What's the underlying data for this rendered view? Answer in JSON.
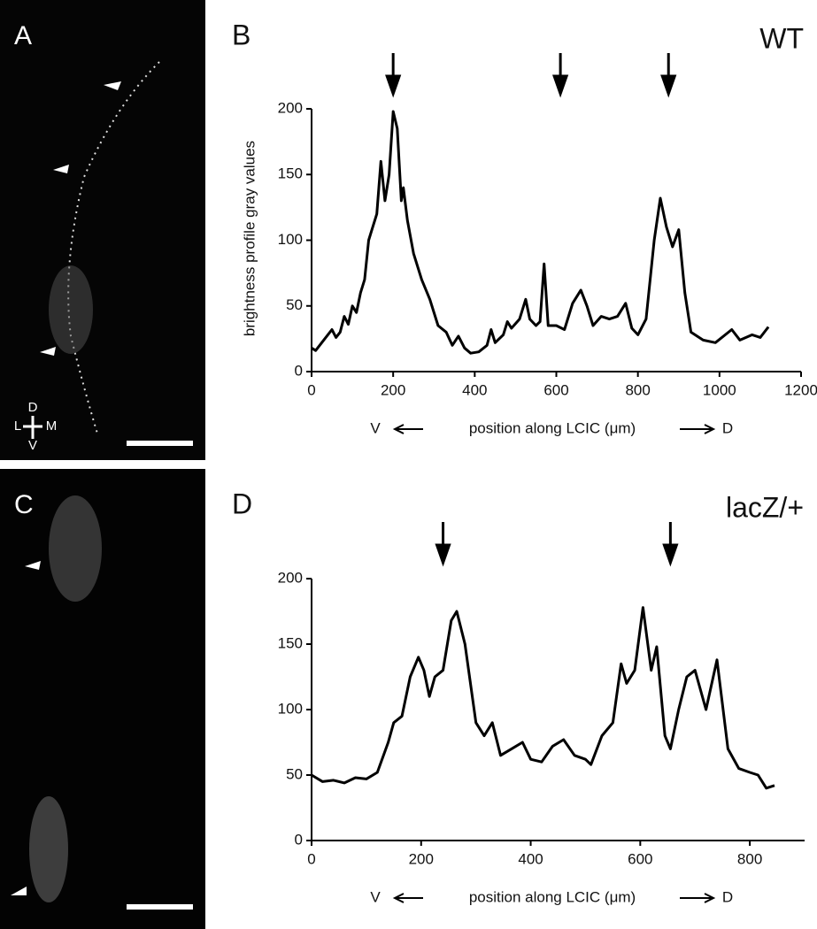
{
  "panels": [
    {
      "label": "A",
      "orientation": [
        "D",
        "L",
        "M",
        "V"
      ]
    },
    {
      "label": "C"
    }
  ],
  "chart_data": [
    {
      "type": "line",
      "panel": "B",
      "label": "WT",
      "y_label": "brightness profile gray values",
      "x_label": [
        "V",
        "position along LCIC (μm)",
        "D"
      ],
      "color": "#000000",
      "xlim": [
        0,
        1200
      ],
      "xticks": [
        0,
        200,
        400,
        600,
        800,
        1000,
        1200
      ],
      "ylim": [
        0,
        200
      ],
      "yticks": [
        0,
        50,
        100,
        150,
        200
      ],
      "arrow_x": [
        200,
        610,
        875
      ],
      "x": [
        0,
        10,
        25,
        40,
        50,
        60,
        70,
        80,
        90,
        100,
        110,
        120,
        130,
        140,
        150,
        160,
        170,
        180,
        190,
        200,
        210,
        220,
        225,
        235,
        250,
        270,
        290,
        310,
        330,
        345,
        360,
        375,
        390,
        410,
        430,
        440,
        450,
        470,
        480,
        490,
        510,
        525,
        535,
        550,
        560,
        570,
        580,
        600,
        620,
        640,
        660,
        675,
        690,
        710,
        730,
        750,
        770,
        785,
        800,
        820,
        840,
        855,
        870,
        885,
        900,
        915,
        930,
        960,
        990,
        1030,
        1050,
        1080,
        1100,
        1120
      ],
      "values": [
        18,
        16,
        22,
        28,
        32,
        26,
        30,
        42,
        36,
        50,
        45,
        60,
        70,
        100,
        110,
        120,
        160,
        130,
        150,
        198,
        185,
        130,
        140,
        115,
        90,
        70,
        55,
        35,
        30,
        20,
        27,
        18,
        14,
        15,
        20,
        32,
        22,
        28,
        38,
        33,
        40,
        55,
        40,
        35,
        38,
        82,
        35,
        35,
        32,
        52,
        62,
        50,
        35,
        42,
        40,
        42,
        52,
        33,
        28,
        40,
        100,
        132,
        110,
        95,
        108,
        60,
        30,
        24,
        22,
        32,
        24,
        28,
        26,
        34
      ]
    },
    {
      "type": "line",
      "panel": "D",
      "label": "lacZ/+",
      "x_label": [
        "V",
        "position along LCIC (μm)",
        "D"
      ],
      "color": "#000000",
      "xlim": [
        0,
        900
      ],
      "xticks": [
        0,
        200,
        400,
        600,
        800
      ],
      "ylim": [
        0,
        200
      ],
      "yticks": [
        0,
        50,
        100,
        150,
        200
      ],
      "arrow_x": [
        240,
        655
      ],
      "x": [
        0,
        20,
        40,
        60,
        80,
        100,
        120,
        140,
        150,
        165,
        180,
        195,
        205,
        215,
        225,
        240,
        255,
        265,
        280,
        300,
        315,
        330,
        345,
        365,
        385,
        400,
        420,
        440,
        460,
        480,
        500,
        510,
        530,
        550,
        565,
        575,
        590,
        605,
        620,
        630,
        645,
        655,
        670,
        685,
        700,
        720,
        740,
        760,
        780,
        800,
        815,
        830,
        845
      ],
      "values": [
        50,
        45,
        46,
        44,
        48,
        47,
        52,
        75,
        90,
        95,
        125,
        140,
        130,
        110,
        125,
        130,
        168,
        175,
        150,
        90,
        80,
        90,
        65,
        70,
        75,
        62,
        60,
        72,
        77,
        65,
        62,
        58,
        80,
        90,
        135,
        120,
        130,
        178,
        130,
        148,
        80,
        70,
        100,
        125,
        130,
        100,
        138,
        70,
        55,
        52,
        50,
        40,
        42
      ]
    }
  ]
}
